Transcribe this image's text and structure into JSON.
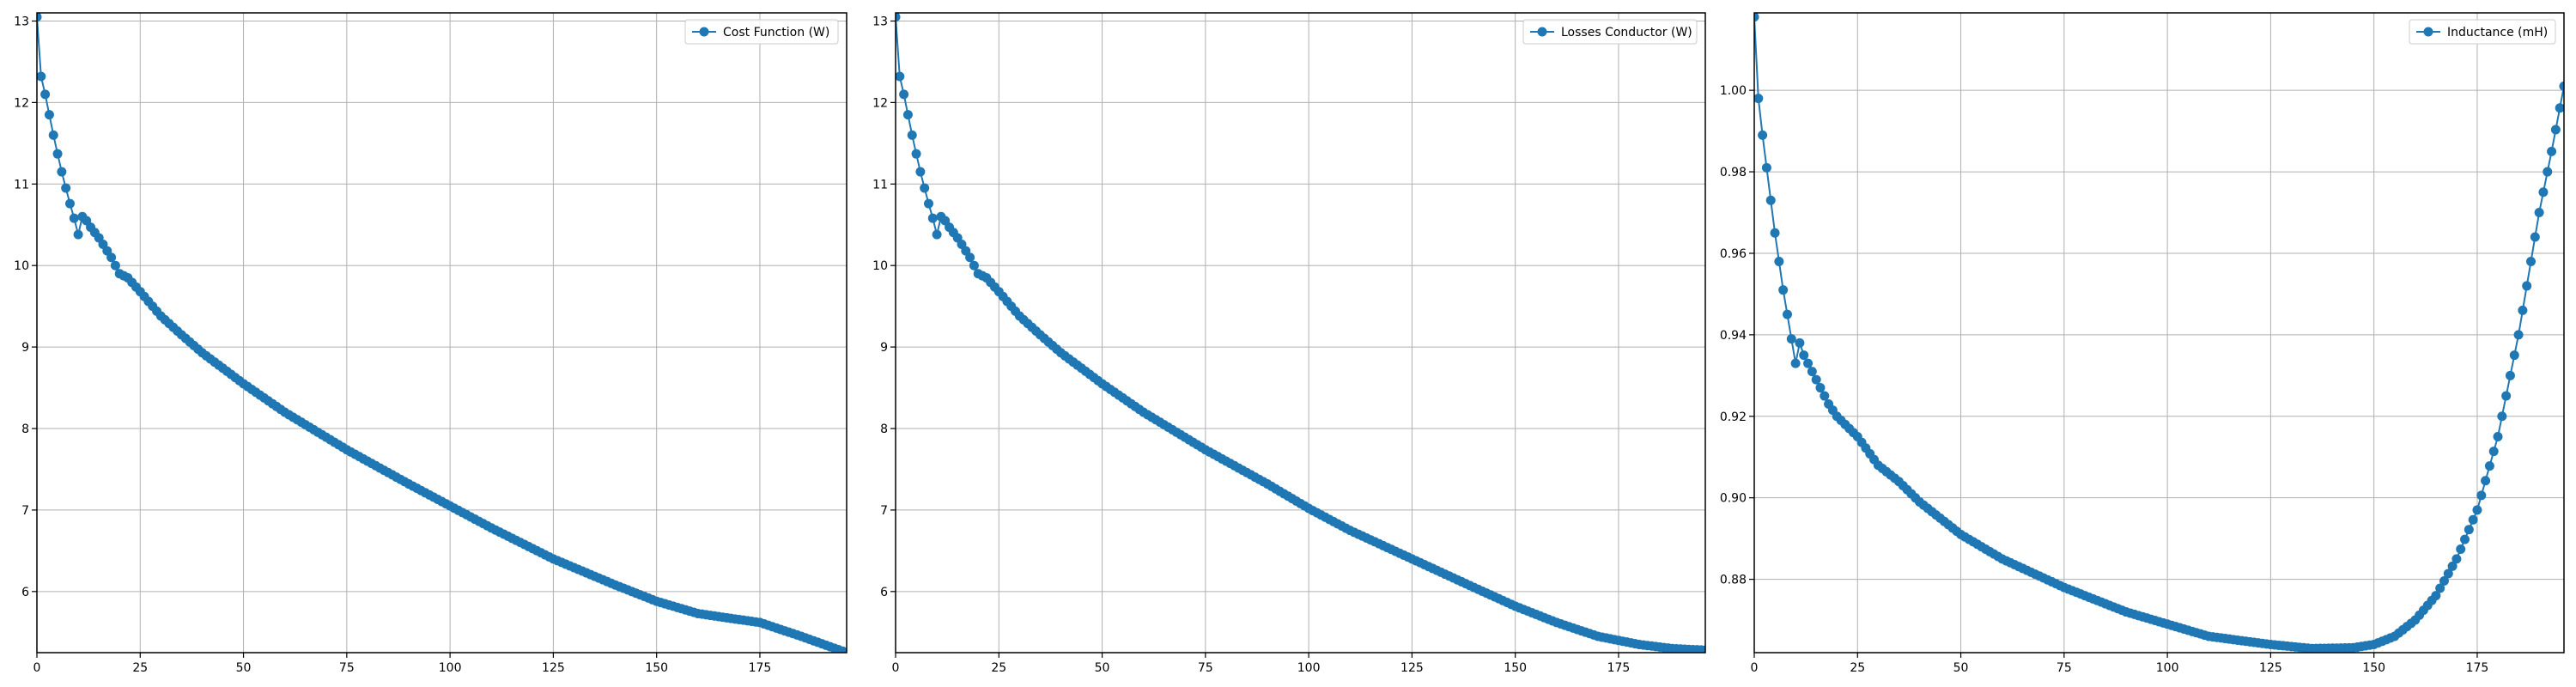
{
  "chart_data": [
    {
      "type": "line",
      "title": "",
      "xlabel": "",
      "ylabel": "",
      "xlim": [
        0,
        196
      ],
      "ylim": [
        5.25,
        13.1
      ],
      "xticks": [
        0,
        25,
        50,
        75,
        100,
        125,
        150,
        175
      ],
      "xtick_labels": [
        "0",
        "25",
        "50",
        "75",
        "100",
        "125",
        "150",
        "175"
      ],
      "yticks": [
        6,
        7,
        8,
        9,
        10,
        11,
        12,
        13
      ],
      "ytick_labels": [
        "6",
        "7",
        "8",
        "9",
        "10",
        "11",
        "12",
        "13"
      ],
      "grid": true,
      "legend_position": "upper right",
      "color": "#1f77b4",
      "marker": "circle",
      "series": [
        {
          "name": "Cost Function (W)",
          "x_start": 0,
          "x_end": 196,
          "anchors": [
            [
              0,
              13.05
            ],
            [
              1,
              12.32
            ],
            [
              2,
              12.1
            ],
            [
              3,
              11.85
            ],
            [
              4,
              11.6
            ],
            [
              5,
              11.37
            ],
            [
              6,
              11.15
            ],
            [
              7,
              10.95
            ],
            [
              8,
              10.76
            ],
            [
              9,
              10.58
            ],
            [
              10,
              10.38
            ],
            [
              11,
              10.6
            ],
            [
              12,
              10.55
            ],
            [
              13,
              10.47
            ],
            [
              15,
              10.34
            ],
            [
              18,
              10.1
            ],
            [
              20,
              9.9
            ],
            [
              22,
              9.85
            ],
            [
              25,
              9.68
            ],
            [
              30,
              9.38
            ],
            [
              35,
              9.15
            ],
            [
              40,
              8.93
            ],
            [
              50,
              8.55
            ],
            [
              60,
              8.2
            ],
            [
              75,
              7.74
            ],
            [
              90,
              7.32
            ],
            [
              100,
              7.05
            ],
            [
              110,
              6.78
            ],
            [
              125,
              6.4
            ],
            [
              140,
              6.08
            ],
            [
              150,
              5.88
            ],
            [
              160,
              5.73
            ],
            [
              168,
              5.67
            ],
            [
              175,
              5.62
            ],
            [
              185,
              5.45
            ],
            [
              196,
              5.25
            ]
          ]
        }
      ]
    },
    {
      "type": "line",
      "title": "",
      "xlabel": "",
      "ylabel": "",
      "xlim": [
        0,
        196
      ],
      "ylim": [
        5.25,
        13.1
      ],
      "xticks": [
        0,
        25,
        50,
        75,
        100,
        125,
        150,
        175
      ],
      "xtick_labels": [
        "0",
        "25",
        "50",
        "75",
        "100",
        "125",
        "150",
        "175"
      ],
      "yticks": [
        6,
        7,
        8,
        9,
        10,
        11,
        12,
        13
      ],
      "ytick_labels": [
        "6",
        "7",
        "8",
        "9",
        "10",
        "11",
        "12",
        "13"
      ],
      "grid": true,
      "legend_position": "upper right",
      "color": "#1f77b4",
      "marker": "circle",
      "series": [
        {
          "name": "Losses Conductor (W)",
          "x_start": 0,
          "x_end": 196,
          "anchors": [
            [
              0,
              13.05
            ],
            [
              1,
              12.32
            ],
            [
              2,
              12.1
            ],
            [
              3,
              11.85
            ],
            [
              4,
              11.6
            ],
            [
              5,
              11.37
            ],
            [
              6,
              11.15
            ],
            [
              7,
              10.95
            ],
            [
              8,
              10.76
            ],
            [
              9,
              10.58
            ],
            [
              10,
              10.38
            ],
            [
              11,
              10.6
            ],
            [
              12,
              10.55
            ],
            [
              13,
              10.47
            ],
            [
              15,
              10.34
            ],
            [
              18,
              10.1
            ],
            [
              20,
              9.9
            ],
            [
              22,
              9.85
            ],
            [
              25,
              9.68
            ],
            [
              30,
              9.38
            ],
            [
              35,
              9.15
            ],
            [
              40,
              8.93
            ],
            [
              50,
              8.55
            ],
            [
              60,
              8.2
            ],
            [
              75,
              7.74
            ],
            [
              90,
              7.32
            ],
            [
              100,
              7.02
            ],
            [
              110,
              6.75
            ],
            [
              125,
              6.4
            ],
            [
              140,
              6.05
            ],
            [
              150,
              5.82
            ],
            [
              160,
              5.62
            ],
            [
              170,
              5.45
            ],
            [
              180,
              5.35
            ],
            [
              188,
              5.3
            ],
            [
              196,
              5.28
            ]
          ]
        }
      ]
    },
    {
      "type": "line",
      "title": "",
      "xlabel": "",
      "ylabel": "",
      "xlim": [
        0,
        196
      ],
      "ylim": [
        0.862,
        1.019
      ],
      "xticks": [
        0,
        25,
        50,
        75,
        100,
        125,
        150,
        175
      ],
      "xtick_labels": [
        "0",
        "25",
        "50",
        "75",
        "100",
        "125",
        "150",
        "175"
      ],
      "yticks": [
        0.88,
        0.9,
        0.92,
        0.94,
        0.96,
        0.98,
        1.0
      ],
      "ytick_labels": [
        "0.88",
        "0.90",
        "0.92",
        "0.94",
        "0.96",
        "0.98",
        "1.00"
      ],
      "grid": true,
      "legend_position": "upper right",
      "color": "#1f77b4",
      "marker": "circle",
      "series": [
        {
          "name": "Inductance (mH)",
          "x_start": 0,
          "x_end": 196,
          "anchors": [
            [
              0,
              1.018
            ],
            [
              1,
              0.998
            ],
            [
              2,
              0.989
            ],
            [
              3,
              0.981
            ],
            [
              4,
              0.973
            ],
            [
              5,
              0.965
            ],
            [
              6,
              0.958
            ],
            [
              7,
              0.951
            ],
            [
              8,
              0.945
            ],
            [
              9,
              0.939
            ],
            [
              10,
              0.933
            ],
            [
              11,
              0.938
            ],
            [
              12,
              0.935
            ],
            [
              14,
              0.931
            ],
            [
              16,
              0.927
            ],
            [
              18,
              0.923
            ],
            [
              20,
              0.92
            ],
            [
              22,
              0.918
            ],
            [
              25,
              0.915
            ],
            [
              30,
              0.908
            ],
            [
              35,
              0.904
            ],
            [
              40,
              0.899
            ],
            [
              50,
              0.891
            ],
            [
              60,
              0.885
            ],
            [
              75,
              0.878
            ],
            [
              90,
              0.872
            ],
            [
              100,
              0.869
            ],
            [
              110,
              0.866
            ],
            [
              125,
              0.864
            ],
            [
              135,
              0.863
            ],
            [
              145,
              0.8632
            ],
            [
              150,
              0.864
            ],
            [
              155,
              0.866
            ],
            [
              160,
              0.87
            ],
            [
              165,
              0.876
            ],
            [
              170,
              0.885
            ],
            [
              175,
              0.897
            ],
            [
              180,
              0.915
            ],
            [
              185,
              0.94
            ],
            [
              190,
              0.97
            ],
            [
              193,
              0.985
            ],
            [
              196,
              1.001
            ]
          ]
        }
      ]
    }
  ]
}
